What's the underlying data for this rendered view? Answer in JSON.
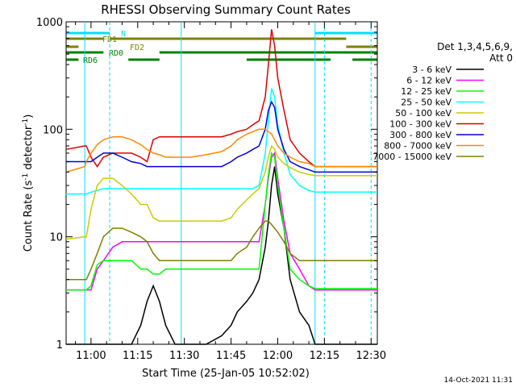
{
  "chart_data": {
    "type": "line",
    "title": "RHESSI Observing Summary Count Rates",
    "xlabel": "Start Time (25-Jan-05 10:52:02)",
    "ylabel_main": "Count Rate (s",
    "ylabel_sup1": "-1",
    "ylabel_mid": " detector",
    "ylabel_sup2": "-1",
    "ylabel_end": ")",
    "y_scale": "log",
    "ylim": [
      1,
      1000
    ],
    "xlim_minutes_after_1052": [
      0,
      100
    ],
    "x_tick_labels": [
      "11:00",
      "11:15",
      "11:30",
      "11:45",
      "12:00",
      "12:15",
      "12:30"
    ],
    "x_tick_minutes": [
      8,
      23,
      38,
      53,
      68,
      83,
      98
    ],
    "y_tick_labels": [
      "1",
      "10",
      "100",
      "1000"
    ],
    "y_tick_values": [
      1,
      10,
      100,
      1000
    ],
    "legend_header": [
      "Det 1,3,4,5,6,9,",
      "Att 0"
    ],
    "legend_placement": "right",
    "footer_date": "14-Oct-2021 11:31",
    "series": [
      {
        "name": "3 - 6 keV",
        "color": "#000000"
      },
      {
        "name": "6 - 12 keV",
        "color": "#ff00ff"
      },
      {
        "name": "12 - 25 keV",
        "color": "#00ff00"
      },
      {
        "name": "25 - 50 keV",
        "color": "#00ffff"
      },
      {
        "name": "50 - 100 keV",
        "color": "#cccc00"
      },
      {
        "name": "100 - 300 keV",
        "color": "#dd0000"
      },
      {
        "name": "300 - 800 keV",
        "color": "#0000dd"
      },
      {
        "name": "800 - 7000 keV",
        "color": "#ff8800"
      },
      {
        "name": "7000 - 15000 keV",
        "color": "#808000"
      }
    ],
    "series_values": {
      "x": [
        0,
        6,
        6.5,
        8,
        10,
        12,
        15,
        18,
        21,
        24,
        26,
        28,
        30,
        32,
        35,
        40,
        45,
        50,
        53,
        55,
        58,
        60,
        62,
        64,
        65,
        66,
        67,
        68,
        70,
        72,
        75,
        78,
        80,
        82,
        83,
        85,
        88,
        90,
        92,
        95,
        97,
        100
      ],
      "3-6": [
        1,
        1,
        1,
        1,
        1,
        1,
        1,
        1,
        1,
        1.5,
        2.5,
        3.5,
        2.5,
        1.5,
        1,
        1,
        1,
        1.2,
        1.5,
        2,
        2.5,
        3,
        4,
        8,
        14,
        30,
        45,
        25,
        12,
        4,
        2,
        1.5,
        1,
        1,
        1,
        1,
        1,
        1,
        1,
        1,
        1,
        1
      ],
      "6-12": [
        3.2,
        3.2,
        3.2,
        3.2,
        5,
        6,
        8,
        9,
        9,
        9,
        9,
        9,
        9,
        9,
        9,
        9,
        9,
        9,
        9,
        9,
        9,
        9,
        9,
        20,
        35,
        55,
        60,
        35,
        14,
        7,
        5,
        3.5,
        3.2,
        3.2,
        3.2,
        3.2,
        3.2,
        3.2,
        3.2,
        3.2,
        3.2,
        3.2
      ],
      "12-25": [
        3.2,
        3.2,
        3.2,
        3.5,
        5.5,
        6,
        6,
        6,
        6,
        5,
        5,
        4.5,
        4.5,
        5,
        5,
        5,
        5,
        5,
        5,
        5,
        5,
        5,
        5,
        20,
        38,
        60,
        55,
        30,
        12,
        5,
        4,
        3.5,
        3.3,
        3.3,
        3.3,
        3.3,
        3.3,
        3.3,
        3.3,
        3.3,
        3.3,
        3.3
      ],
      "25-50": [
        25,
        25,
        25,
        26,
        27,
        28,
        28,
        28,
        28,
        28,
        28,
        28,
        28,
        28,
        28,
        28,
        28,
        28,
        28,
        28,
        28,
        28,
        30,
        60,
        120,
        240,
        200,
        110,
        60,
        38,
        30,
        27,
        26,
        26,
        26,
        26,
        26,
        26,
        26,
        26,
        26,
        26
      ],
      "50-100": [
        9.5,
        10,
        10,
        18,
        30,
        35,
        35,
        30,
        25,
        20,
        20,
        15,
        14,
        14,
        14,
        14,
        14,
        14,
        15,
        18,
        22,
        25,
        28,
        40,
        55,
        70,
        65,
        55,
        48,
        44,
        40,
        38,
        37,
        37,
        37,
        37,
        37,
        37,
        37,
        37,
        37,
        37
      ],
      "100-300": [
        65,
        70,
        70,
        55,
        45,
        55,
        60,
        60,
        60,
        55,
        50,
        80,
        85,
        85,
        85,
        85,
        85,
        85,
        90,
        95,
        100,
        110,
        120,
        200,
        400,
        850,
        600,
        300,
        150,
        80,
        60,
        50,
        45,
        45,
        45,
        45,
        45,
        45,
        45,
        45,
        45,
        45
      ],
      "300-800": [
        50,
        50,
        50,
        50,
        55,
        60,
        60,
        55,
        50,
        48,
        45,
        45,
        45,
        45,
        45,
        45,
        45,
        45,
        50,
        55,
        60,
        65,
        70,
        100,
        150,
        180,
        160,
        100,
        65,
        50,
        45,
        42,
        40,
        40,
        40,
        40,
        40,
        40,
        40,
        40,
        40,
        40
      ],
      "800-7000": [
        40,
        45,
        50,
        60,
        72,
        80,
        85,
        85,
        80,
        72,
        65,
        60,
        58,
        55,
        55,
        55,
        58,
        62,
        70,
        80,
        90,
        95,
        100,
        100,
        95,
        90,
        80,
        70,
        60,
        55,
        50,
        48,
        45,
        45,
        45,
        45,
        45,
        45,
        45,
        45,
        45,
        45
      ],
      "7000-15000": [
        4,
        4,
        4,
        5,
        7,
        10,
        12,
        12,
        11,
        10,
        9,
        7,
        6,
        6,
        6,
        6,
        6,
        6,
        6,
        7,
        8,
        10,
        12,
        14,
        14,
        13,
        12,
        11,
        9,
        7,
        6,
        6,
        6,
        6,
        6,
        6,
        6,
        6,
        6,
        6,
        6,
        6
      ]
    },
    "flag_bars": [
      {
        "label": "N",
        "color": "#00e0ff",
        "segments": [
          [
            0,
            14
          ],
          [
            80,
            100
          ]
        ]
      },
      {
        "label": "FD1",
        "color": "#808000",
        "segments": [
          [
            0,
            12
          ],
          [
            14,
            90
          ]
        ]
      },
      {
        "label": "FD2",
        "color": "#808000",
        "segments": [
          [
            0,
            4
          ],
          [
            90,
            100
          ]
        ]
      },
      {
        "label": "RD0",
        "color": "#008000",
        "segments": [
          [
            0,
            12
          ],
          [
            30,
            100
          ]
        ]
      },
      {
        "label": "RD6",
        "color": "#008000",
        "segments": [
          [
            0,
            4
          ],
          [
            20,
            30
          ],
          [
            58,
            85
          ],
          [
            92,
            100
          ]
        ]
      }
    ]
  }
}
